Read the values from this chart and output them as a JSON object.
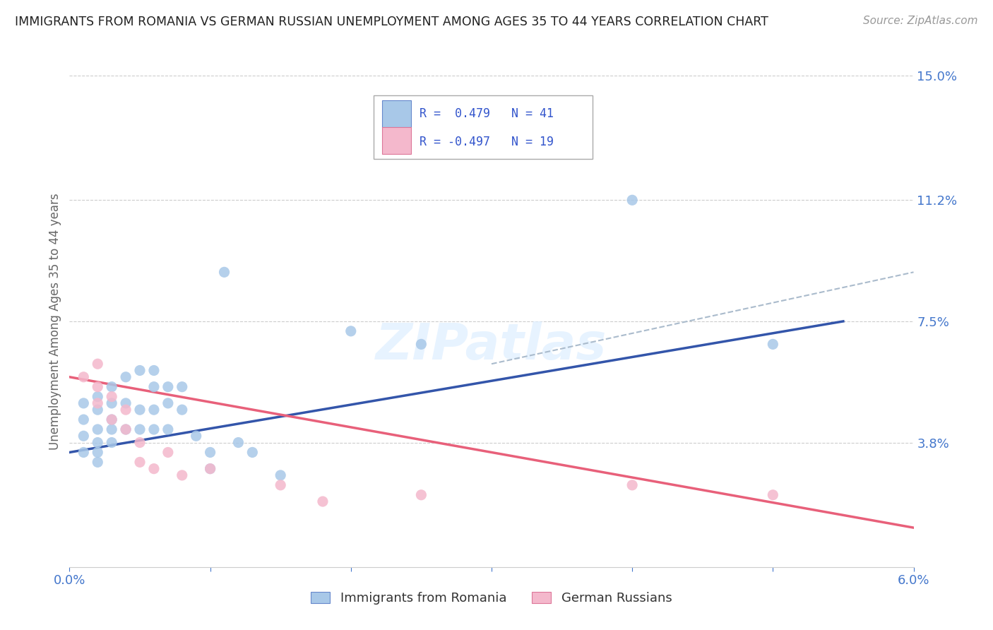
{
  "title": "IMMIGRANTS FROM ROMANIA VS GERMAN RUSSIAN UNEMPLOYMENT AMONG AGES 35 TO 44 YEARS CORRELATION CHART",
  "source": "Source: ZipAtlas.com",
  "ylabel": "Unemployment Among Ages 35 to 44 years",
  "xlim": [
    0.0,
    0.06
  ],
  "ylim": [
    0.0,
    0.15
  ],
  "xticks": [
    0.0,
    0.01,
    0.02,
    0.03,
    0.04,
    0.05,
    0.06
  ],
  "xticklabels": [
    "0.0%",
    "",
    "",
    "",
    "",
    "",
    "6.0%"
  ],
  "ytick_values": [
    0.038,
    0.075,
    0.112,
    0.15
  ],
  "ytick_labels": [
    "3.8%",
    "7.5%",
    "11.2%",
    "15.0%"
  ],
  "legend_r1": "R =  0.479   N = 41",
  "legend_r2": "R = -0.497   N = 19",
  "legend_label1": "Immigrants from Romania",
  "legend_label2": "German Russians",
  "color_romania": "#a8c8e8",
  "color_german": "#f4b8cc",
  "color_trendline_romania": "#3355aa",
  "color_trendline_german": "#e8607a",
  "color_trendline_dashed": "#aabbcc",
  "romania_points": [
    [
      0.001,
      0.05
    ],
    [
      0.001,
      0.045
    ],
    [
      0.001,
      0.04
    ],
    [
      0.001,
      0.035
    ],
    [
      0.002,
      0.052
    ],
    [
      0.002,
      0.048
    ],
    [
      0.002,
      0.042
    ],
    [
      0.002,
      0.038
    ],
    [
      0.002,
      0.035
    ],
    [
      0.002,
      0.032
    ],
    [
      0.003,
      0.055
    ],
    [
      0.003,
      0.05
    ],
    [
      0.003,
      0.045
    ],
    [
      0.003,
      0.042
    ],
    [
      0.003,
      0.038
    ],
    [
      0.004,
      0.058
    ],
    [
      0.004,
      0.05
    ],
    [
      0.004,
      0.042
    ],
    [
      0.005,
      0.06
    ],
    [
      0.005,
      0.048
    ],
    [
      0.005,
      0.042
    ],
    [
      0.006,
      0.06
    ],
    [
      0.006,
      0.055
    ],
    [
      0.006,
      0.048
    ],
    [
      0.006,
      0.042
    ],
    [
      0.007,
      0.055
    ],
    [
      0.007,
      0.05
    ],
    [
      0.007,
      0.042
    ],
    [
      0.008,
      0.055
    ],
    [
      0.008,
      0.048
    ],
    [
      0.009,
      0.04
    ],
    [
      0.01,
      0.035
    ],
    [
      0.01,
      0.03
    ],
    [
      0.011,
      0.09
    ],
    [
      0.012,
      0.038
    ],
    [
      0.013,
      0.035
    ],
    [
      0.015,
      0.028
    ],
    [
      0.02,
      0.072
    ],
    [
      0.025,
      0.068
    ],
    [
      0.04,
      0.112
    ],
    [
      0.05,
      0.068
    ]
  ],
  "german_points": [
    [
      0.001,
      0.058
    ],
    [
      0.002,
      0.062
    ],
    [
      0.002,
      0.055
    ],
    [
      0.002,
      0.05
    ],
    [
      0.003,
      0.052
    ],
    [
      0.003,
      0.045
    ],
    [
      0.004,
      0.048
    ],
    [
      0.004,
      0.042
    ],
    [
      0.005,
      0.038
    ],
    [
      0.005,
      0.032
    ],
    [
      0.006,
      0.03
    ],
    [
      0.007,
      0.035
    ],
    [
      0.008,
      0.028
    ],
    [
      0.01,
      0.03
    ],
    [
      0.015,
      0.025
    ],
    [
      0.018,
      0.02
    ],
    [
      0.025,
      0.022
    ],
    [
      0.04,
      0.025
    ],
    [
      0.05,
      0.022
    ]
  ],
  "romania_trend_x": [
    0.0,
    0.055
  ],
  "romania_trend_y": [
    0.035,
    0.075
  ],
  "german_trend_x": [
    0.0,
    0.06
  ],
  "german_trend_y": [
    0.058,
    0.012
  ],
  "dashed_trend_x": [
    0.03,
    0.06
  ],
  "dashed_trend_y": [
    0.062,
    0.09
  ],
  "watermark": "ZIPatlas",
  "background_color": "#ffffff",
  "grid_color": "#cccccc"
}
